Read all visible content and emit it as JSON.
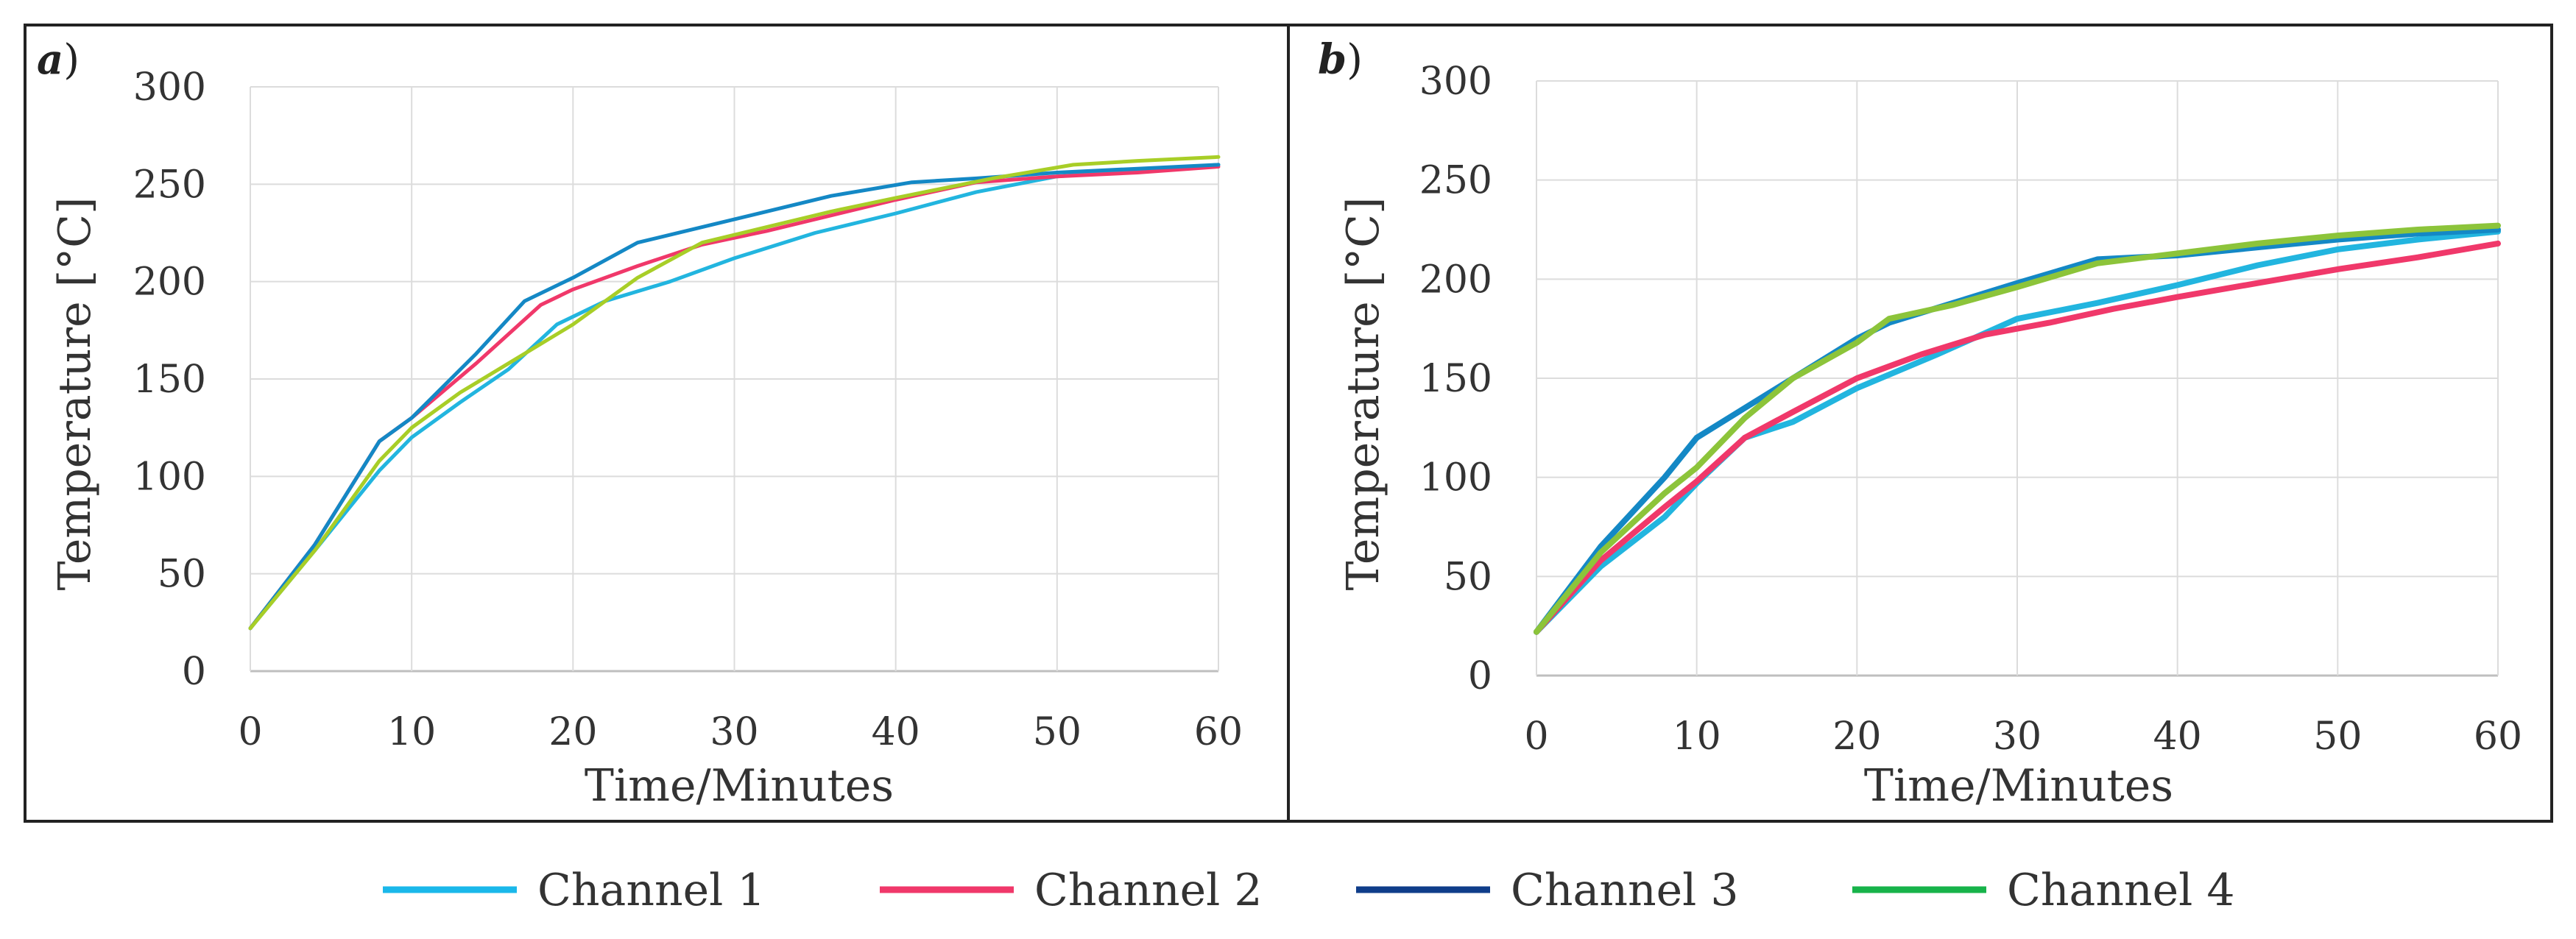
{
  "legend": [
    {
      "name": "Channel 1",
      "color": "#1ab8ea"
    },
    {
      "name": "Channel 2",
      "color": "#f0386a"
    },
    {
      "name": "Channel 3",
      "color": "#0f3d8a"
    },
    {
      "name": "Channel 4",
      "color": "#17b34a"
    }
  ],
  "chart_data": [
    {
      "panel": "a",
      "type": "line",
      "xlabel": "Time/Minutes",
      "ylabel": "Temperature [°C]",
      "xlim": [
        0,
        60
      ],
      "ylim": [
        0,
        300
      ],
      "xticks": [
        "0",
        "10",
        "20",
        "30",
        "40",
        "50",
        "60"
      ],
      "yticks": [
        "0",
        "50",
        "100",
        "150",
        "200",
        "250",
        "300"
      ],
      "grid": true,
      "series": [
        {
          "name": "Channel 1",
          "color": "#1ab8ea",
          "line_color": "#22b5df",
          "x": [
            0,
            4,
            8,
            10,
            13,
            16,
            19,
            22,
            26,
            30,
            35,
            40,
            45,
            50,
            55,
            60
          ],
          "y": [
            22,
            62,
            103,
            120,
            138,
            155,
            178,
            190,
            200,
            212,
            225,
            235,
            246,
            254,
            257,
            260
          ]
        },
        {
          "name": "Channel 2",
          "color": "#f0386a",
          "line_color": "#f0386a",
          "x": [
            0,
            4,
            8,
            10,
            14,
            18,
            20,
            24,
            28,
            32,
            36,
            40,
            45,
            50,
            55,
            60
          ],
          "y": [
            22,
            65,
            118,
            130,
            158,
            188,
            196,
            208,
            219,
            226,
            234,
            242,
            251,
            254,
            256,
            259
          ]
        },
        {
          "name": "Channel 3",
          "color": "#0f3d8a",
          "line_color": "#1488c5",
          "x": [
            0,
            4,
            8,
            10,
            14,
            17,
            20,
            24,
            28,
            32,
            36,
            41,
            45,
            50,
            55,
            60
          ],
          "y": [
            22,
            65,
            118,
            130,
            163,
            190,
            202,
            220,
            228,
            236,
            244,
            251,
            253,
            256,
            258,
            260
          ]
        },
        {
          "name": "Channel 4",
          "color": "#17b34a",
          "line_color": "#a8ce27",
          "x": [
            0,
            4,
            8,
            10,
            13,
            16,
            20,
            24,
            28,
            32,
            36,
            40,
            46,
            51,
            55,
            60
          ],
          "y": [
            22,
            62,
            108,
            125,
            143,
            158,
            178,
            202,
            220,
            228,
            236,
            243,
            253,
            260,
            262,
            264
          ]
        }
      ]
    },
    {
      "panel": "b",
      "type": "line",
      "xlabel": "Time/Minutes",
      "ylabel": "Temperature [°C]",
      "xlim": [
        0,
        60
      ],
      "ylim": [
        0,
        300
      ],
      "xticks": [
        "0",
        "10",
        "20",
        "30",
        "40",
        "50",
        "60"
      ],
      "yticks": [
        "0",
        "50",
        "100",
        "150",
        "200",
        "250",
        "300"
      ],
      "grid": true,
      "series": [
        {
          "name": "Channel 1",
          "color": "#1ab8ea",
          "line_color": "#22b5df",
          "x": [
            0,
            4,
            8,
            10,
            13,
            16,
            20,
            25,
            30,
            35,
            40,
            45,
            50,
            55,
            60
          ],
          "y": [
            22,
            55,
            80,
            97,
            120,
            128,
            145,
            162,
            180,
            188,
            197,
            207,
            215,
            220,
            224
          ]
        },
        {
          "name": "Channel 2",
          "color": "#f0386a",
          "line_color": "#f0386a",
          "x": [
            0,
            4,
            8,
            10,
            13,
            16,
            20,
            24,
            28,
            32,
            36,
            40,
            45,
            50,
            55,
            60
          ],
          "y": [
            22,
            58,
            85,
            98,
            120,
            133,
            150,
            162,
            172,
            178,
            185,
            191,
            198,
            205,
            211,
            218
          ]
        },
        {
          "name": "Channel 3",
          "color": "#0f3d8a",
          "line_color": "#1488c5",
          "x": [
            0,
            4,
            8,
            10,
            13,
            16,
            20,
            22,
            26,
            30,
            35,
            40,
            45,
            50,
            55,
            60
          ],
          "y": [
            22,
            65,
            100,
            120,
            135,
            150,
            170,
            178,
            188,
            198,
            210,
            212,
            216,
            220,
            223,
            225
          ]
        },
        {
          "name": "Channel 4",
          "color": "#17b34a",
          "line_color": "#8cc43a",
          "x": [
            0,
            4,
            8,
            10,
            13,
            16,
            20,
            22,
            26,
            30,
            35,
            40,
            45,
            50,
            55,
            60
          ],
          "y": [
            22,
            62,
            92,
            105,
            130,
            150,
            168,
            180,
            187,
            196,
            208,
            213,
            218,
            222,
            225,
            227
          ]
        }
      ]
    }
  ]
}
